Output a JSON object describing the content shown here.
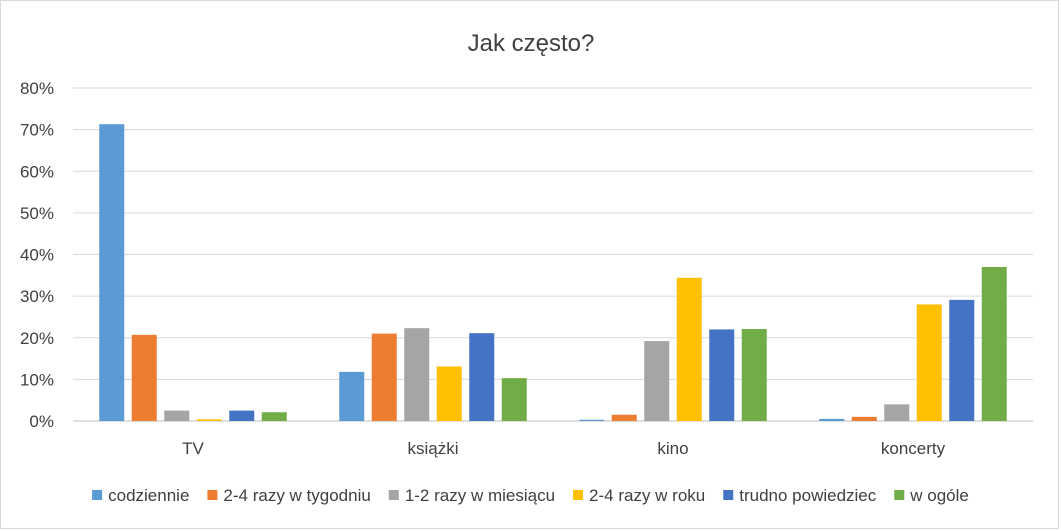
{
  "chart_data": {
    "type": "bar",
    "title": "Jak często?",
    "xlabel": "",
    "ylabel": "",
    "categories": [
      "TV",
      "książki",
      "kino",
      "koncerty"
    ],
    "ylim": [
      0,
      80
    ],
    "yticks": [
      "0%",
      "10%",
      "20%",
      "30%",
      "40%",
      "50%",
      "60%",
      "70%",
      "80%"
    ],
    "grid": true,
    "legend_position": "bottom",
    "series": [
      {
        "name": "codziennie",
        "color": "#5b9bd5",
        "values": [
          71.3,
          11.8,
          0.3,
          0.5
        ]
      },
      {
        "name": "2-4 razy w tygodniu",
        "color": "#ed7d31",
        "values": [
          20.7,
          21.0,
          1.5,
          1.0
        ]
      },
      {
        "name": "1-2 razy w miesiącu",
        "color": "#a5a5a5",
        "values": [
          2.5,
          22.3,
          19.2,
          4.0
        ]
      },
      {
        "name": "2-4 razy w roku",
        "color": "#ffc000",
        "values": [
          0.4,
          13.1,
          34.4,
          28.0
        ]
      },
      {
        "name": "trudno powiedziec",
        "color": "#4472c4",
        "values": [
          2.5,
          21.1,
          22.0,
          29.1
        ]
      },
      {
        "name": "w ogóle",
        "color": "#70ad47",
        "values": [
          2.1,
          10.3,
          22.1,
          37.0
        ]
      }
    ]
  }
}
